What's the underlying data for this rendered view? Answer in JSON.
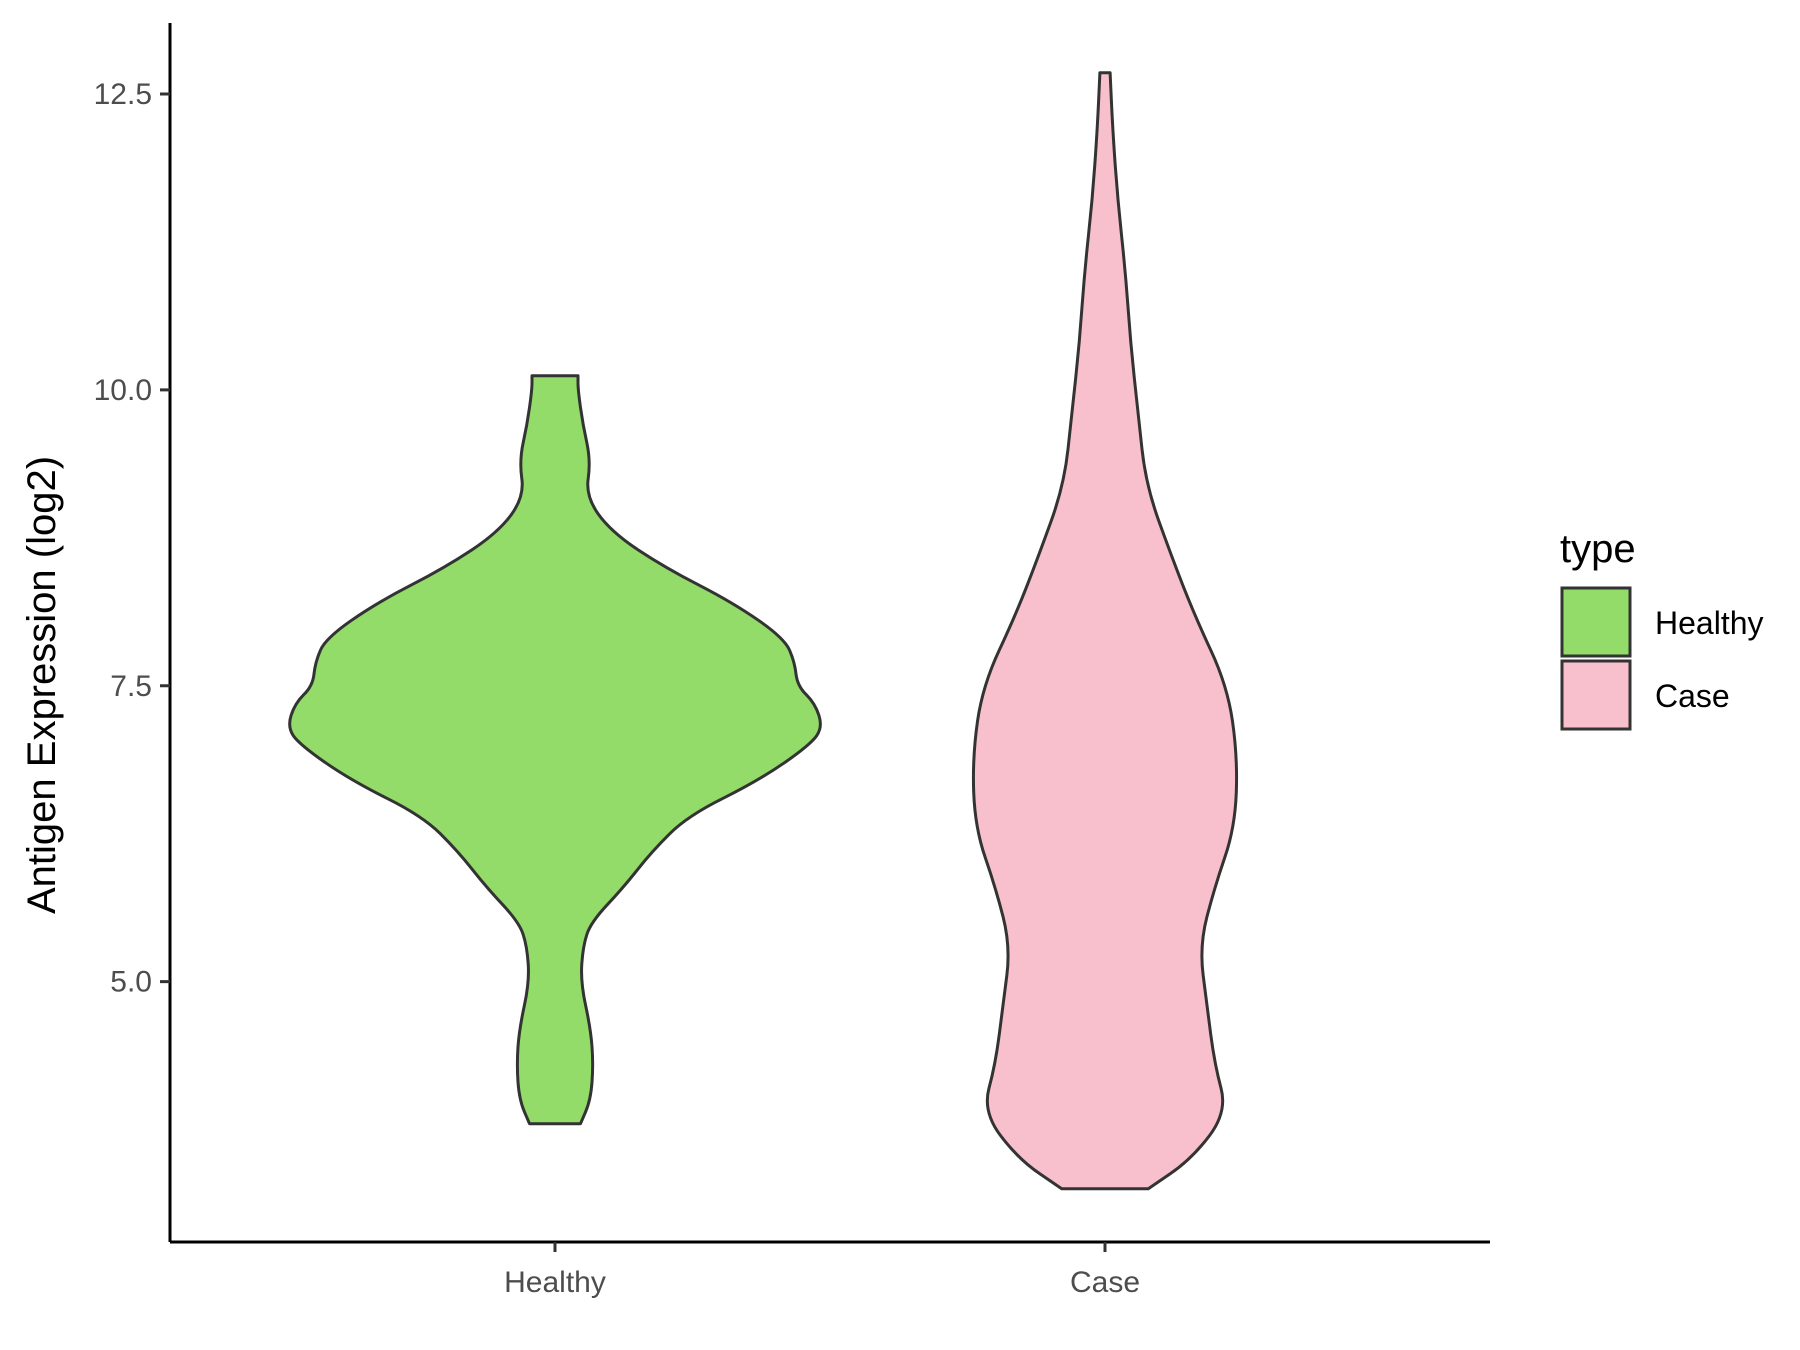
{
  "chart_data": {
    "type": "violin",
    "title": "",
    "xlabel": "",
    "ylabel": "Antigen Expression (log2)",
    "categories": [
      "Healthy",
      "Case"
    ],
    "y_ticks": [
      "5.0",
      "7.5",
      "10.0",
      "12.5"
    ],
    "ylim": [
      2.8,
      13.1
    ],
    "legend": {
      "title": "type",
      "position": "right",
      "entries": [
        "Healthy",
        "Case"
      ]
    },
    "colors": {
      "Healthy": "#93dc6a",
      "Case": "#f8c0cc",
      "outline": "#333333",
      "axis": "#000000"
    },
    "series": [
      {
        "name": "Healthy",
        "y_min": 3.8,
        "y_max": 10.12,
        "density_profile": [
          [
            3.8,
            0.1
          ],
          [
            4.0,
            0.14
          ],
          [
            4.3,
            0.15
          ],
          [
            4.6,
            0.14
          ],
          [
            5.0,
            0.1
          ],
          [
            5.3,
            0.11
          ],
          [
            5.5,
            0.14
          ],
          [
            5.8,
            0.27
          ],
          [
            6.1,
            0.38
          ],
          [
            6.4,
            0.52
          ],
          [
            6.7,
            0.8
          ],
          [
            7.0,
            1.0
          ],
          [
            7.15,
            1.05
          ],
          [
            7.35,
            1.02
          ],
          [
            7.5,
            0.95
          ],
          [
            7.7,
            0.94
          ],
          [
            7.9,
            0.9
          ],
          [
            8.2,
            0.7
          ],
          [
            8.5,
            0.43
          ],
          [
            8.8,
            0.22
          ],
          [
            9.1,
            0.12
          ],
          [
            9.4,
            0.14
          ],
          [
            9.7,
            0.11
          ],
          [
            10.0,
            0.09
          ],
          [
            10.12,
            0.09
          ]
        ]
      },
      {
        "name": "Case",
        "y_min": 3.25,
        "y_max": 12.68,
        "density_profile": [
          [
            3.25,
            0.17
          ],
          [
            3.5,
            0.34
          ],
          [
            3.9,
            0.48
          ],
          [
            4.3,
            0.43
          ],
          [
            4.8,
            0.4
          ],
          [
            5.3,
            0.37
          ],
          [
            5.8,
            0.43
          ],
          [
            6.3,
            0.51
          ],
          [
            6.9,
            0.52
          ],
          [
            7.5,
            0.48
          ],
          [
            8.1,
            0.35
          ],
          [
            8.6,
            0.26
          ],
          [
            9.2,
            0.16
          ],
          [
            9.8,
            0.13
          ],
          [
            10.4,
            0.1
          ],
          [
            11.0,
            0.08
          ],
          [
            11.6,
            0.05
          ],
          [
            12.2,
            0.03
          ],
          [
            12.68,
            0.02
          ]
        ]
      }
    ]
  }
}
